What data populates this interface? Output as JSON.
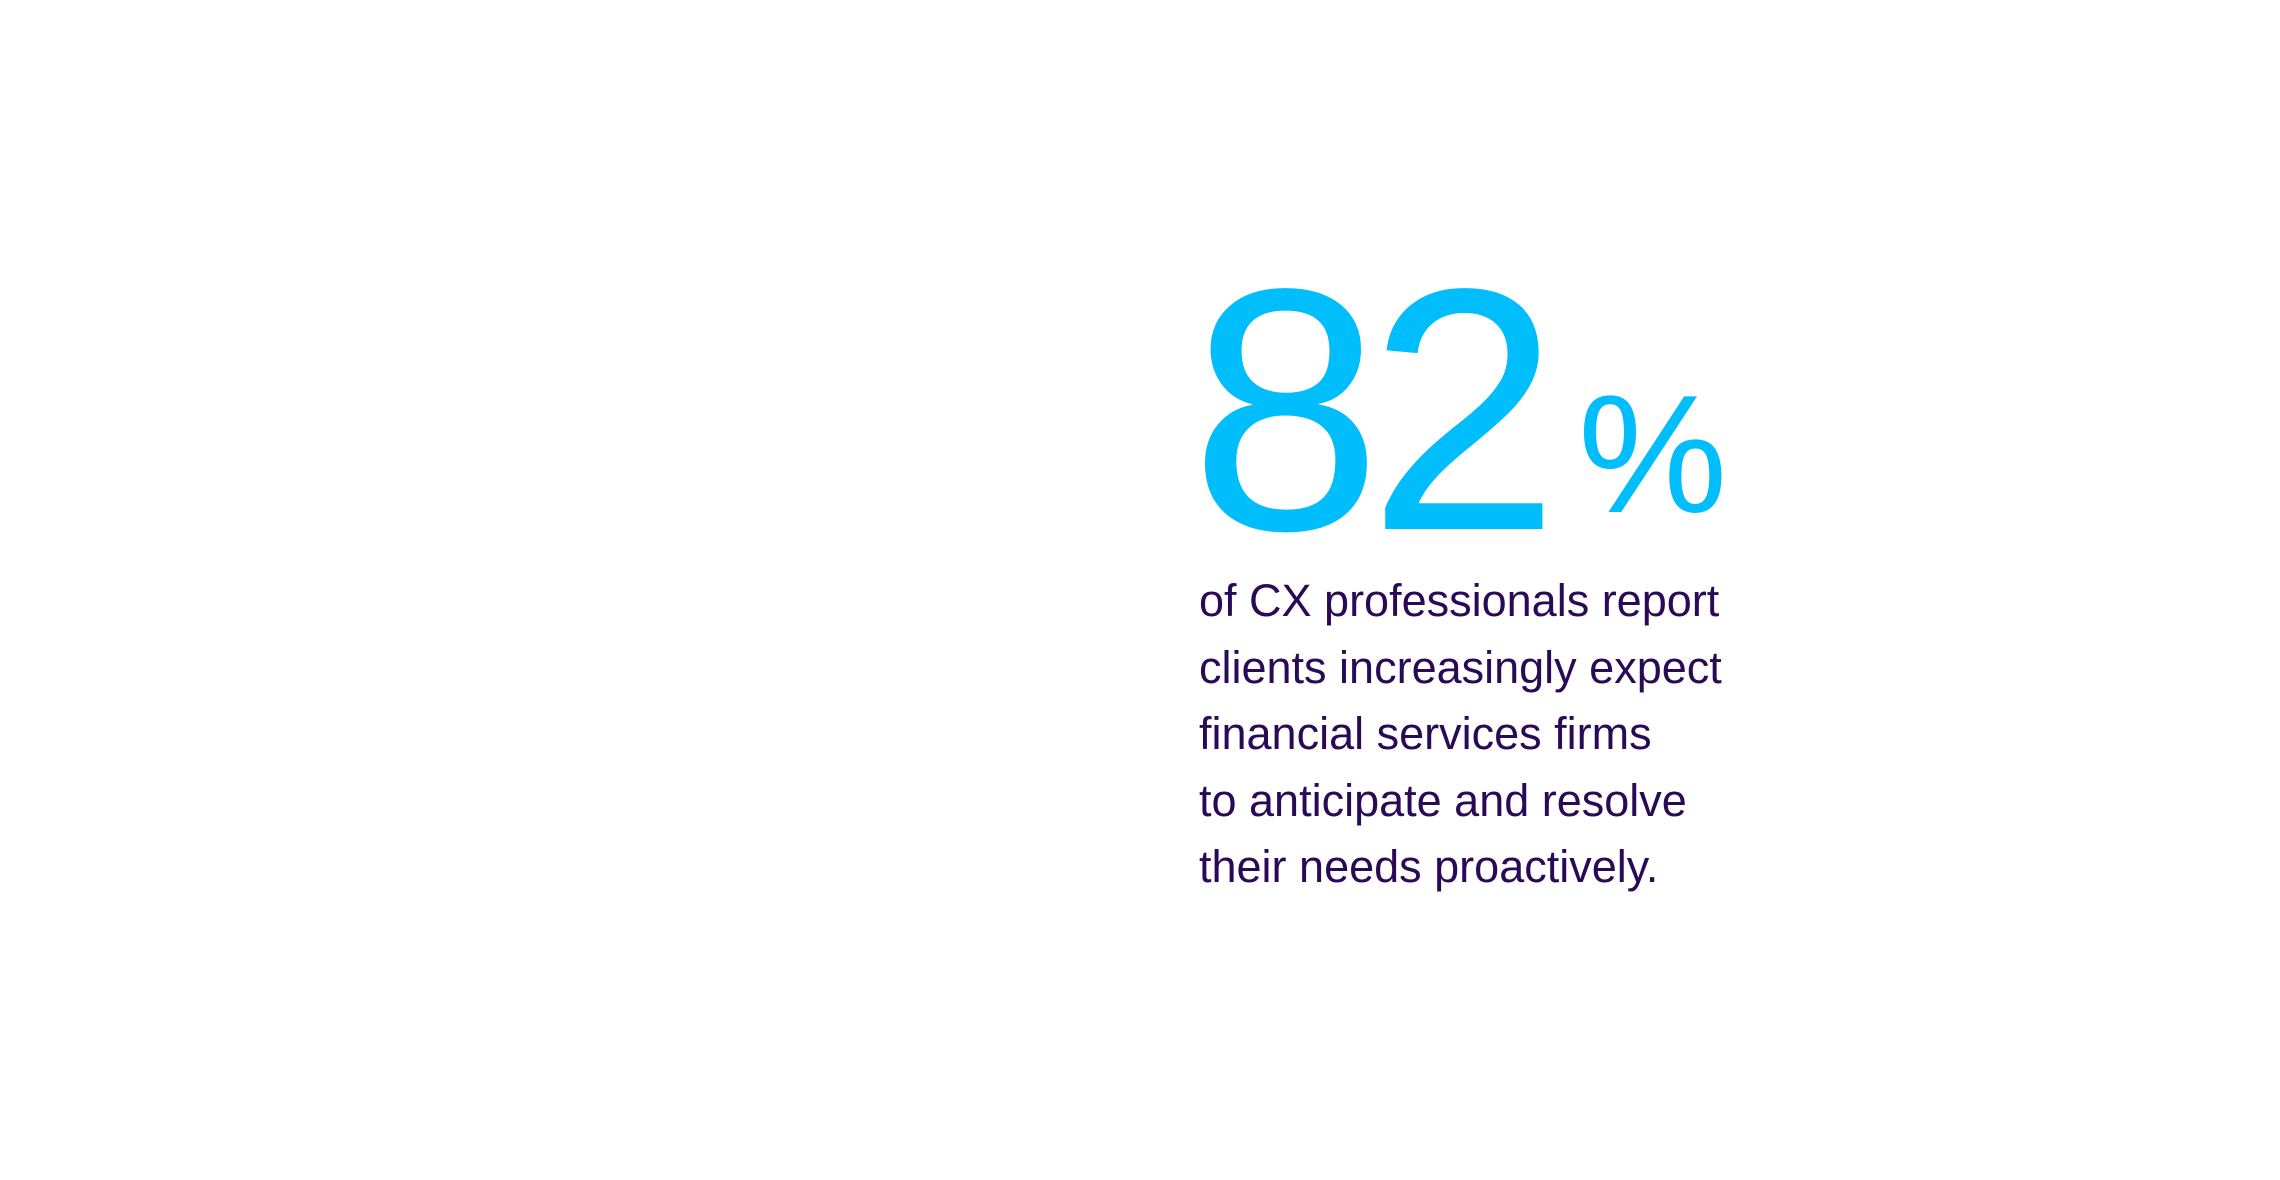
{
  "stat": {
    "value": "82",
    "unit": "%",
    "description_lines": [
      "of CX professionals report",
      "clients increasingly expect",
      "financial services firms",
      "to anticipate and resolve",
      "their needs proactively."
    ]
  },
  "colors": {
    "accent": "#00bdfb",
    "text": "#2a0a57",
    "background": "#ffffff"
  }
}
